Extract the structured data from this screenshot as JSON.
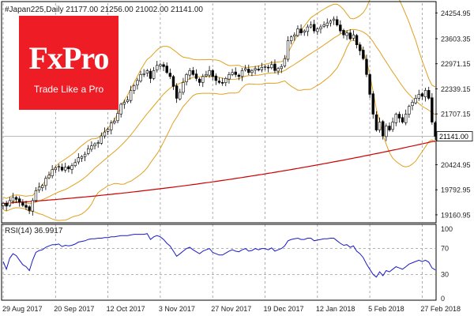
{
  "brand": {
    "name": "FxPro",
    "tagline": "Trade Like a Pro",
    "color": "#ee1c25"
  },
  "chart_data": [
    {
      "type": "candlestick",
      "title": "#Japan225,Daily",
      "ohlc_header": "21177.00 21256.00 21002.00 21141.00",
      "last_value_label": "21141.00",
      "last_value": 21141,
      "ylim": [
        19000,
        24500
      ],
      "ytick_values": [
        24254.95,
        23603.35,
        22971.15,
        22339.15,
        21707.15,
        21141.0,
        20424.95,
        19792.95,
        19160.95
      ],
      "yticks": [
        "24254.95",
        "23603.35",
        "22971.15",
        "22339.15",
        "21707.15",
        "21141.00",
        "20424.95",
        "19792.95",
        "19160.95"
      ],
      "xticks": [
        "29 Aug 2017",
        "20 Sep 2017",
        "12 Oct 2017",
        "3 Nov 2017",
        "27 Nov 2017",
        "19 Dec 2017",
        "12 Jan 2018",
        "5 Feb 2018",
        "27 Feb 2018"
      ],
      "xtick_index": [
        0,
        16,
        32,
        48,
        64,
        80,
        96,
        112,
        128
      ],
      "grid": "vertical dashed",
      "series": [
        {
          "kind": "ohlc",
          "close": [
            19450,
            19380,
            19520,
            19600,
            19550,
            19480,
            19400,
            19350,
            19270,
            19520,
            19770,
            19860,
            19900,
            20080,
            20160,
            20300,
            20350,
            20380,
            20290,
            20360,
            20320,
            20400,
            20480,
            20600,
            20630,
            20690,
            20830,
            20900,
            20950,
            20980,
            21150,
            21250,
            21320,
            21480,
            21520,
            21720,
            21950,
            22000,
            22060,
            22300,
            22420,
            22550,
            22700,
            22720,
            22800,
            22600,
            22800,
            22930,
            22950,
            22900,
            22750,
            22650,
            22400,
            22100,
            22250,
            22500,
            22700,
            22800,
            22700,
            22600,
            22500,
            22650,
            22700,
            22800,
            22650,
            22550,
            22500,
            22480,
            22600,
            22700,
            22750,
            22700,
            22650,
            22800,
            22850,
            22750,
            22800,
            22850,
            22820,
            22880,
            22900,
            22870,
            22950,
            22800,
            22850,
            22900,
            23100,
            23550,
            23650,
            23700,
            23850,
            23750,
            23800,
            23900,
            23950,
            23800,
            23850,
            23900,
            23950,
            24000,
            24050,
            24100,
            23950,
            23800,
            23700,
            23750,
            23600,
            23700,
            23450,
            23300,
            23100,
            22700,
            22200,
            21700,
            21300,
            21500,
            21150,
            21400,
            21300,
            21500,
            21700,
            21600,
            21500,
            21700,
            21900,
            22000,
            22100,
            22200,
            22150,
            22300,
            22100,
            21500,
            21141
          ]
        },
        {
          "name": "",
          "kind": "line",
          "color": "#cc0000",
          "start": 19450,
          "end": 21180
        },
        {
          "name": "",
          "kind": "band",
          "color": "#e0a020",
          "period": 20,
          "k": 2
        }
      ]
    },
    {
      "type": "line",
      "title": "RSI(14) 36.9917",
      "yticks": [
        "100",
        "70",
        "30",
        "0"
      ],
      "ytick_values": [
        100,
        70,
        30,
        0
      ],
      "ylim": [
        0,
        100
      ],
      "levels": [
        30,
        70
      ],
      "series": [
        {
          "name": "RSI(14)",
          "color": "#1a1ac8",
          "values": [
            50,
            38,
            55,
            62,
            59,
            52,
            45,
            42,
            36,
            52,
            64,
            67,
            68,
            72,
            74,
            76,
            76,
            77,
            73,
            75,
            74,
            75,
            77,
            80,
            81,
            82,
            84,
            85,
            85,
            86,
            86,
            87,
            87,
            88,
            88,
            89,
            90,
            90,
            90,
            91,
            92,
            92,
            92,
            92,
            93,
            84,
            88,
            90,
            88,
            84,
            78,
            74,
            66,
            58,
            62,
            66,
            70,
            72,
            68,
            65,
            62,
            66,
            68,
            70,
            64,
            62,
            60,
            60,
            63,
            66,
            68,
            66,
            65,
            68,
            70,
            66,
            67,
            70,
            68,
            70,
            70,
            68,
            71,
            66,
            68,
            70,
            74,
            82,
            84,
            85,
            86,
            84,
            84,
            86,
            86,
            82,
            83,
            84,
            85,
            85,
            86,
            86,
            82,
            78,
            75,
            76,
            72,
            74,
            66,
            62,
            56,
            46,
            38,
            30,
            26,
            34,
            28,
            36,
            34,
            38,
            42,
            40,
            38,
            42,
            46,
            48,
            50,
            52,
            50,
            52,
            49,
            40,
            37
          ]
        }
      ]
    }
  ]
}
